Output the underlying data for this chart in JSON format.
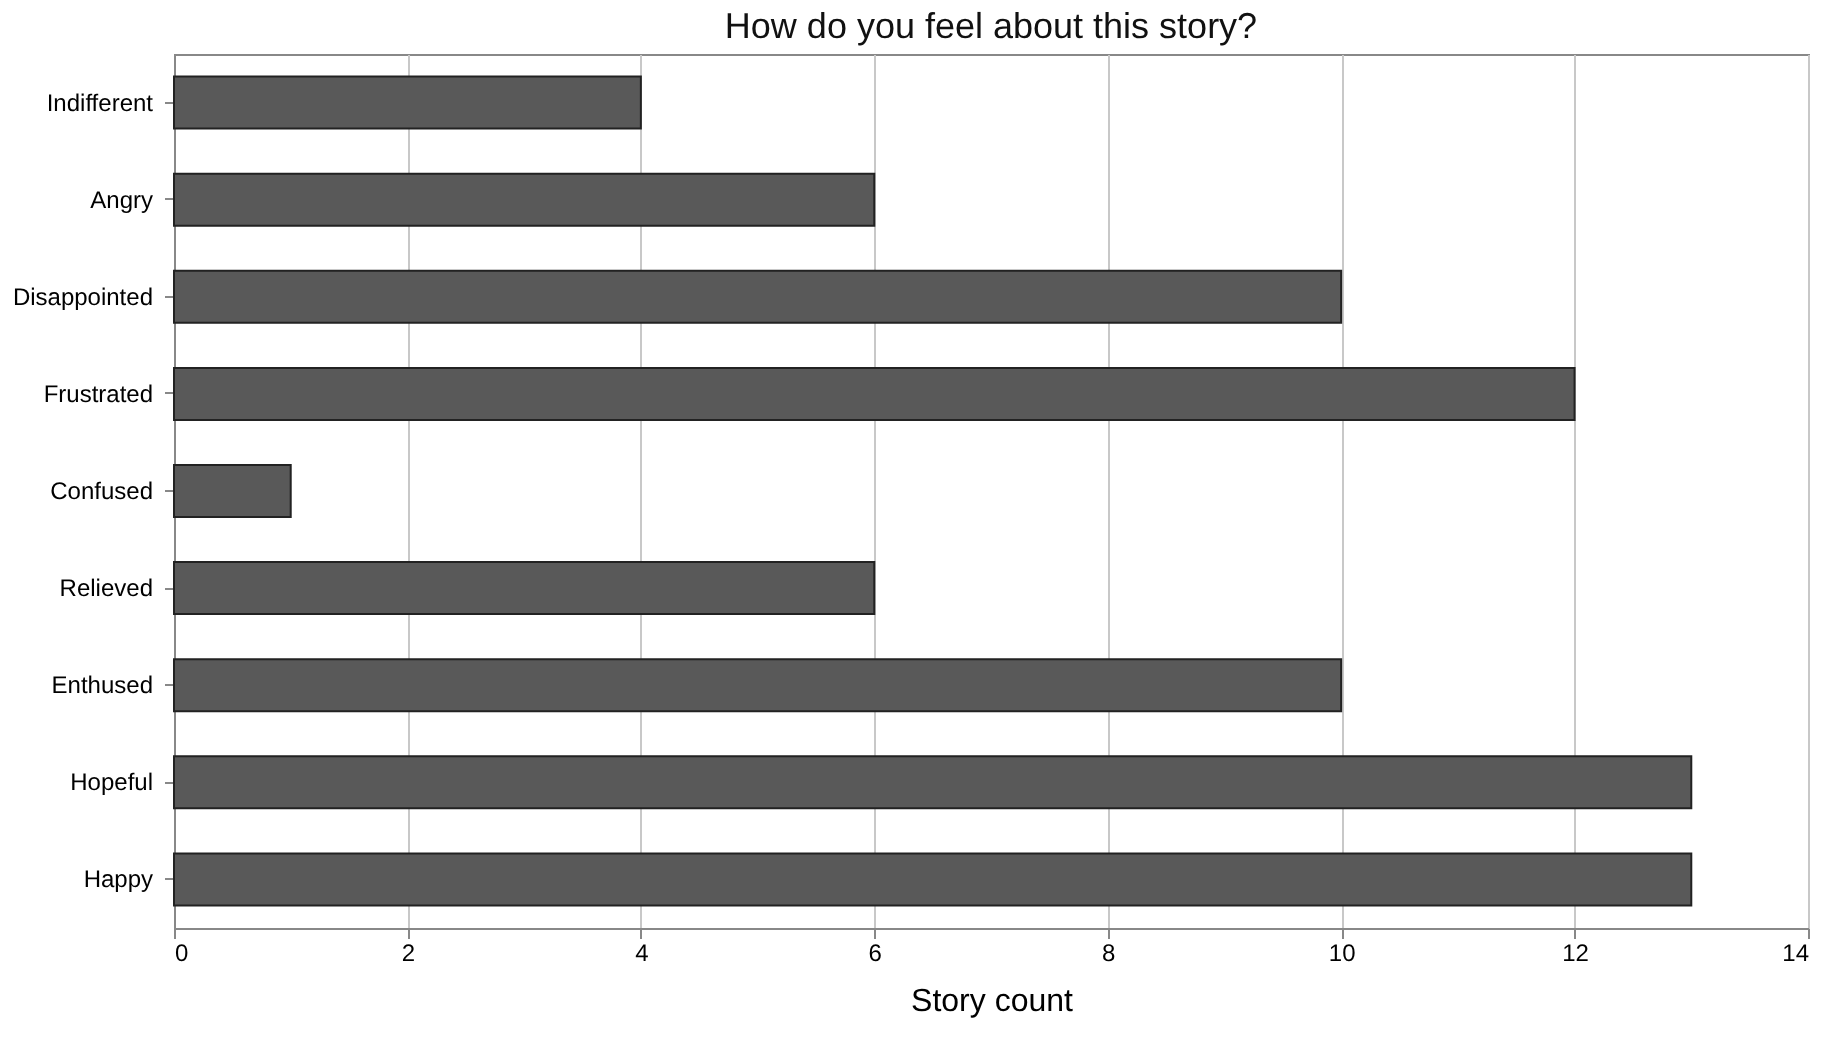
{
  "chart_data": {
    "type": "bar",
    "orientation": "horizontal",
    "title": "How do you feel about this story?",
    "xlabel": "Story count",
    "categories": [
      "Indifferent",
      "Angry",
      "Disappointed",
      "Frustrated",
      "Confused",
      "Relieved",
      "Enthused",
      "Hopeful",
      "Happy"
    ],
    "values": [
      4,
      6,
      10,
      12,
      1,
      6,
      10,
      13,
      13
    ],
    "color": "#595959",
    "xlim": [
      0,
      14
    ],
    "xticks": [
      0,
      2,
      4,
      6,
      8,
      10,
      12,
      14
    ],
    "grid": "x"
  }
}
